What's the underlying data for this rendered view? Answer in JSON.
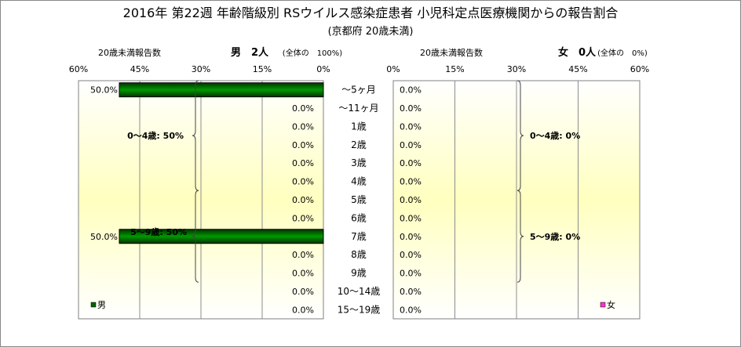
{
  "title": "2016年 第22週 年齢階級別 RSウイルス感染症患者 小児科定点医療機関からの報告割合",
  "subtitle": "(京都府 20歳未満)",
  "colors": {
    "male": "#006400",
    "female": "#ff33cc",
    "plot_fill": "#ffffbf"
  },
  "chart_data": [
    {
      "type": "bar",
      "orientation": "horizontal",
      "direction": "right-to-left",
      "header_left": "20歳未満報告数",
      "header_center": "男　2人",
      "header_right": "(全体の　100%)",
      "legend": "男",
      "legend_position": "bottom-left",
      "xlim": [
        0,
        60
      ],
      "ticks": [
        "60%",
        "45%",
        "30%",
        "15%",
        "0%"
      ],
      "categories": [
        "～5ヶ月",
        "～11ヶ月",
        "1歳",
        "2歳",
        "3歳",
        "4歳",
        "5歳",
        "6歳",
        "7歳",
        "8歳",
        "9歳",
        "10～14歳",
        "15～19歳"
      ],
      "values": [
        50,
        0,
        0,
        0,
        0,
        0,
        0,
        0,
        50,
        0,
        0,
        0,
        0
      ],
      "value_labels": [
        "50.0%",
        "0.0%",
        "0.0%",
        "0.0%",
        "0.0%",
        "0.0%",
        "0.0%",
        "0.0%",
        "50.0%",
        "0.0%",
        "0.0%",
        "0.0%",
        "0.0%"
      ],
      "group_annotations": [
        "0～4歳: 50%",
        "5～9歳: 50%"
      ]
    },
    {
      "type": "bar",
      "orientation": "horizontal",
      "direction": "left-to-right",
      "header_left": "20歳未満報告数",
      "header_center": "女　0人",
      "header_right": "(全体の　0%)",
      "legend": "女",
      "legend_position": "bottom-right",
      "xlim": [
        0,
        60
      ],
      "ticks": [
        "0%",
        "15%",
        "30%",
        "45%",
        "60%"
      ],
      "categories": [
        "～5ヶ月",
        "～11ヶ月",
        "1歳",
        "2歳",
        "3歳",
        "4歳",
        "5歳",
        "6歳",
        "7歳",
        "8歳",
        "9歳",
        "10～14歳",
        "15～19歳"
      ],
      "values": [
        0,
        0,
        0,
        0,
        0,
        0,
        0,
        0,
        0,
        0,
        0,
        0,
        0
      ],
      "value_labels": [
        "0.0%",
        "0.0%",
        "0.0%",
        "0.0%",
        "0.0%",
        "0.0%",
        "0.0%",
        "0.0%",
        "0.0%",
        "0.0%",
        "0.0%",
        "0.0%",
        "0.0%"
      ],
      "group_annotations": [
        "0～4歳: 0%",
        "5～9歳: 0%"
      ]
    }
  ]
}
